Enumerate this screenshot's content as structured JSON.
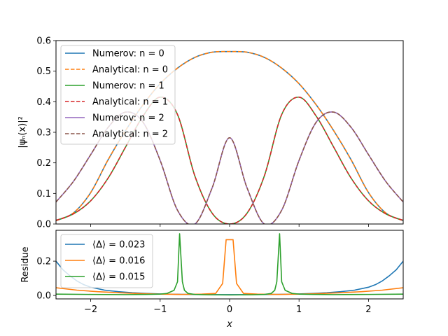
{
  "chart_data": [
    {
      "type": "line",
      "ylabel": "|ψₙ(x)|²",
      "xlim": [
        -2.5,
        2.5
      ],
      "ylim": [
        0,
        0.6
      ],
      "yticks": [
        "0.0",
        "0.1",
        "0.2",
        "0.3",
        "0.4",
        "0.5",
        "0.6"
      ],
      "ytick_values": [
        0,
        0.1,
        0.2,
        0.3,
        0.4,
        0.5,
        0.6
      ],
      "grid": false,
      "legend_position": "upper-left",
      "series": [
        {
          "name": "Numerov: n = 0",
          "n": 0,
          "color": "#1f77b4",
          "dash": "solid"
        },
        {
          "name": "Analytical: n = 0",
          "n": 0,
          "color": "#ff7f0e",
          "dash": "dashed"
        },
        {
          "name": "Numerov: n = 1",
          "n": 1,
          "color": "#2ca02c",
          "dash": "solid"
        },
        {
          "name": "Analytical: n = 1",
          "n": 1,
          "color": "#d62728",
          "dash": "dashed"
        },
        {
          "name": "Numerov: n = 2",
          "n": 2,
          "color": "#9467bd",
          "dash": "solid"
        },
        {
          "name": "Analytical: n = 2",
          "n": 2,
          "color": "#8c564b",
          "dash": "dashed"
        }
      ],
      "x": [
        -2.5,
        -2.25,
        -2.0,
        -1.75,
        -1.5,
        -1.25,
        -1.0,
        -0.75,
        -0.5,
        -0.25,
        0,
        0.25,
        0.5,
        0.75,
        1.0,
        1.25,
        1.5,
        1.75,
        2.0,
        2.25,
        2.5
      ],
      "values": {
        "n0": [
          0.011,
          0.036,
          0.103,
          0.21,
          0.305,
          0.389,
          0.459,
          0.51,
          0.545,
          0.562,
          0.564,
          0.562,
          0.545,
          0.51,
          0.459,
          0.389,
          0.305,
          0.21,
          0.103,
          0.036,
          0.011
        ],
        "n1": [
          0.012,
          0.033,
          0.076,
          0.15,
          0.251,
          0.352,
          0.415,
          0.358,
          0.157,
          0.035,
          0.0,
          0.035,
          0.157,
          0.358,
          0.415,
          0.352,
          0.251,
          0.15,
          0.076,
          0.033,
          0.012
        ],
        "n2": [
          0.072,
          0.139,
          0.227,
          0.316,
          0.366,
          0.334,
          0.208,
          0.045,
          0.0,
          0.119,
          0.282,
          0.119,
          0.0,
          0.045,
          0.208,
          0.334,
          0.366,
          0.316,
          0.227,
          0.139,
          0.072
        ]
      }
    },
    {
      "type": "line",
      "xlabel": "x",
      "ylabel": "Residue",
      "xlim": [
        -2.5,
        2.5
      ],
      "ylim": [
        -0.02,
        0.38
      ],
      "xticks": [
        "−2",
        "−1",
        "0",
        "1",
        "2"
      ],
      "xtick_values": [
        -2,
        -1,
        0,
        1,
        2
      ],
      "yticks": [
        "0.0",
        "0.2"
      ],
      "ytick_values": [
        0,
        0.2
      ],
      "grid": false,
      "legend_position": "upper-left",
      "series": [
        {
          "name": "⟨Δ⟩ = 0.023",
          "color": "#1f77b4",
          "x": [
            -2.5,
            -2.4,
            -2.3,
            -2.2,
            -2.1,
            -2.0,
            -1.8,
            -1.6,
            -1.4,
            -1.2,
            -1.0,
            -0.8,
            -0.6,
            -0.4,
            -0.2,
            0,
            0.2,
            0.4,
            0.6,
            0.8,
            1.0,
            1.2,
            1.4,
            1.6,
            1.8,
            2.0,
            2.1,
            2.2,
            2.3,
            2.4,
            2.5
          ],
          "values": [
            0.2,
            0.15,
            0.115,
            0.085,
            0.063,
            0.048,
            0.031,
            0.022,
            0.016,
            0.012,
            0.009,
            0.007,
            0.006,
            0.005,
            0.005,
            0.005,
            0.005,
            0.005,
            0.006,
            0.007,
            0.009,
            0.012,
            0.016,
            0.022,
            0.031,
            0.048,
            0.063,
            0.085,
            0.115,
            0.15,
            0.2
          ]
        },
        {
          "name": "⟨Δ⟩ = 0.016",
          "color": "#ff7f0e",
          "x": [
            -2.5,
            -2.2,
            -1.9,
            -1.6,
            -1.3,
            -1.0,
            -0.7,
            -0.4,
            -0.2,
            -0.1,
            -0.05,
            0,
            0.05,
            0.1,
            0.2,
            0.4,
            0.7,
            1.0,
            1.3,
            1.6,
            1.9,
            2.2,
            2.5
          ],
          "values": [
            0.045,
            0.031,
            0.022,
            0.016,
            0.011,
            0.008,
            0.006,
            0.008,
            0.012,
            0.07,
            0.325,
            0.325,
            0.325,
            0.07,
            0.012,
            0.008,
            0.006,
            0.008,
            0.011,
            0.016,
            0.022,
            0.031,
            0.045
          ]
        },
        {
          "name": "⟨Δ⟩ = 0.015",
          "color": "#2ca02c",
          "x": [
            -2.5,
            -2.0,
            -1.5,
            -1.2,
            -1.0,
            -0.9,
            -0.8,
            -0.75,
            -0.72,
            -0.68,
            -0.65,
            -0.6,
            -0.5,
            -0.3,
            0,
            0.3,
            0.5,
            0.6,
            0.65,
            0.68,
            0.72,
            0.75,
            0.8,
            0.9,
            1.0,
            1.2,
            1.5,
            2.0,
            2.5
          ],
          "values": [
            0.008,
            0.006,
            0.005,
            0.006,
            0.008,
            0.012,
            0.03,
            0.08,
            0.36,
            0.08,
            0.03,
            0.012,
            0.006,
            0.004,
            0.003,
            0.004,
            0.006,
            0.012,
            0.03,
            0.08,
            0.36,
            0.08,
            0.03,
            0.012,
            0.008,
            0.006,
            0.005,
            0.006,
            0.008
          ]
        }
      ]
    }
  ]
}
